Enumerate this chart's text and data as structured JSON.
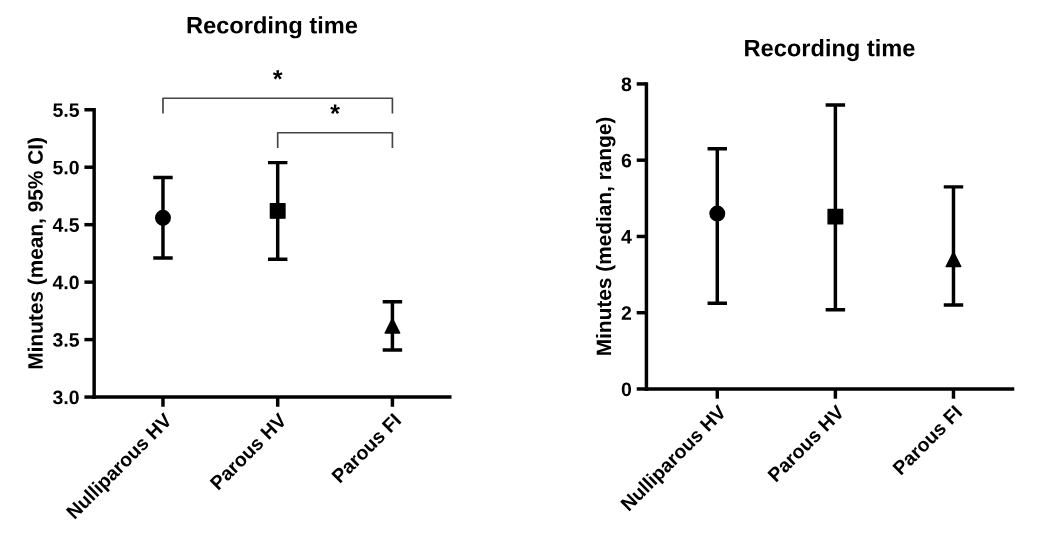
{
  "chart_data": [
    {
      "type": "scatter",
      "title": "Recording time",
      "ylabel": "Minutes (mean, 95% CI)",
      "categories": [
        "Nulliparous HV",
        "Parous HV",
        "Parous FI"
      ],
      "ylim": [
        3.0,
        5.5
      ],
      "yticks": [
        {
          "value": 3.0,
          "label": "3.0"
        },
        {
          "value": 3.5,
          "label": "3.5"
        },
        {
          "value": 4.0,
          "label": "4.0"
        },
        {
          "value": 4.5,
          "label": "4.5"
        },
        {
          "value": 5.0,
          "label": "5.0"
        },
        {
          "value": 5.5,
          "label": "5.5"
        }
      ],
      "grid": false,
      "legend": false,
      "series": [
        {
          "x": [
            "Nulliparous HV"
          ],
          "values": [
            4.56
          ],
          "errors": [
            [
              4.21,
              4.91
            ]
          ],
          "color": "#000000",
          "marker": "circle"
        },
        {
          "x": [
            "Parous HV"
          ],
          "values": [
            4.62
          ],
          "errors": [
            [
              4.2,
              5.04
            ]
          ],
          "color": "#000000",
          "marker": "square"
        },
        {
          "x": [
            "Parous FI"
          ],
          "values": [
            3.62
          ],
          "errors": [
            [
              3.41,
              3.83
            ]
          ],
          "color": "#000000",
          "marker": "triangle"
        }
      ],
      "annotations": [
        "*",
        "*"
      ]
    },
    {
      "type": "scatter",
      "title": "Recording time",
      "ylabel": "Minutes (median, range)",
      "categories": [
        "Nulliparous HV",
        "Parous HV",
        "Parous FI"
      ],
      "ylim": [
        0,
        8
      ],
      "yticks": [
        0,
        2,
        4,
        6,
        8
      ],
      "grid": false,
      "legend": false,
      "series": [
        {
          "x": [
            "Nulliparous HV"
          ],
          "values": [
            4.6
          ],
          "errors": [
            [
              2.25,
              6.3
            ]
          ],
          "color": "#000000",
          "marker": "circle"
        },
        {
          "x": [
            "Parous HV"
          ],
          "values": [
            4.52
          ],
          "errors": [
            [
              2.08,
              7.45
            ]
          ],
          "color": "#000000",
          "marker": "square"
        },
        {
          "x": [
            "Parous FI"
          ],
          "values": [
            3.4
          ],
          "errors": [
            [
              2.2,
              5.3
            ]
          ],
          "color": "#000000",
          "marker": "triangle"
        }
      ]
    }
  ]
}
